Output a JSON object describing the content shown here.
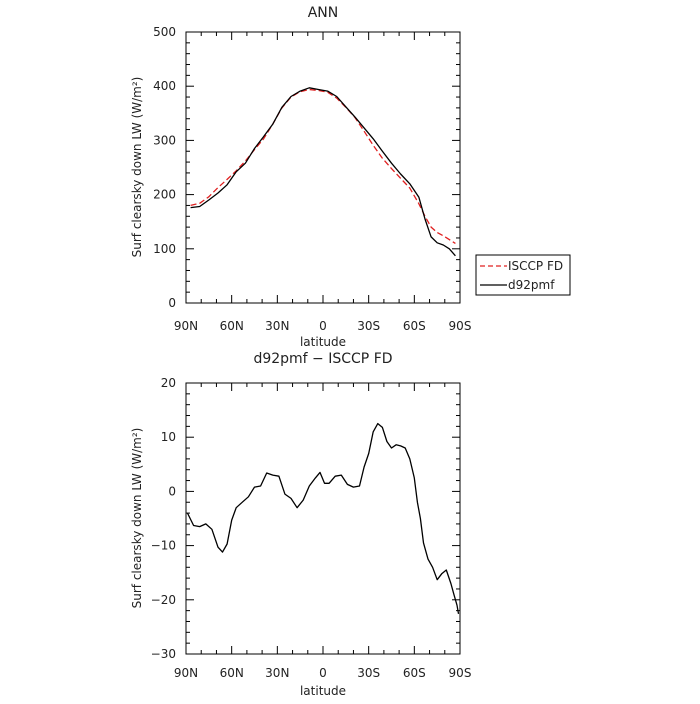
{
  "chart_data": [
    {
      "type": "line",
      "title": "ANN",
      "xlabel": "latitude",
      "ylabel": "Surf clearsky down LW (W/m²)",
      "xticks": [
        "90N",
        "60N",
        "30N",
        "0",
        "30S",
        "60S",
        "90S"
      ],
      "ylim": [
        0,
        500
      ],
      "yticks": [
        "0",
        "100",
        "200",
        "300",
        "400",
        "500"
      ],
      "legend": "right",
      "series": [
        {
          "name": "ISCCP FD",
          "color": "#e02020",
          "dash": "dashed",
          "x": [
            -87,
            -81,
            -75,
            -69,
            -63,
            -57,
            -51,
            -45,
            -39,
            -33,
            -27,
            -21,
            -15,
            -9,
            -3,
            3,
            9,
            15,
            21,
            27,
            33,
            39,
            45,
            51,
            57,
            63,
            67,
            71,
            75,
            79,
            83,
            87
          ],
          "values": [
            180,
            184,
            196,
            213,
            228,
            244,
            262,
            283,
            303,
            330,
            360,
            380,
            390,
            394,
            392,
            389,
            378,
            361,
            342,
            317,
            291,
            267,
            248,
            230,
            212,
            183,
            160,
            140,
            130,
            124,
            117,
            110
          ]
        },
        {
          "name": "d92pmf",
          "color": "#000000",
          "dash": "solid",
          "x": [
            -87,
            -81,
            -75,
            -69,
            -63,
            -57,
            -51,
            -45,
            -39,
            -33,
            -27,
            -21,
            -15,
            -9,
            -3,
            3,
            9,
            15,
            21,
            27,
            33,
            39,
            45,
            51,
            57,
            63,
            67,
            71,
            75,
            79,
            83,
            87
          ],
          "values": [
            176,
            178,
            190,
            203,
            218,
            242,
            258,
            285,
            307,
            330,
            361,
            381,
            391,
            397,
            394,
            391,
            381,
            362,
            343,
            323,
            303,
            280,
            258,
            238,
            220,
            195,
            155,
            122,
            111,
            107,
            100,
            87
          ]
        }
      ]
    },
    {
      "type": "line",
      "title": "d92pmf − ISCCP FD",
      "xlabel": "latitude",
      "ylabel": "Surf clearsky down LW (W/m²)",
      "xticks": [
        "90N",
        "60N",
        "30N",
        "0",
        "30S",
        "60S",
        "90S"
      ],
      "ylim": [
        -30,
        20
      ],
      "yticks": [
        "−30",
        "−20",
        "−10",
        "0",
        "10",
        "20"
      ],
      "series": [
        {
          "color": "#000000",
          "x": [
            -89,
            -85,
            -81,
            -77,
            -73,
            -69,
            -66,
            -63,
            -60,
            -57,
            -53,
            -49,
            -45,
            -41,
            -37,
            -33,
            -29,
            -25,
            -21,
            -17,
            -13,
            -9,
            -5,
            -2,
            1,
            4,
            8,
            12,
            16,
            20,
            24,
            27,
            30,
            33,
            36,
            39,
            42,
            45,
            48,
            51,
            54,
            57,
            60,
            62,
            64,
            66,
            69,
            72,
            75,
            78,
            81,
            84,
            86,
            88,
            89
          ],
          "values": [
            -4,
            -6.3,
            -6.5,
            -6,
            -7,
            -10.3,
            -11.2,
            -9.7,
            -5.3,
            -3,
            -2,
            -1,
            0.8,
            1,
            3.4,
            3,
            2.8,
            -0.5,
            -1.3,
            -3,
            -1.6,
            1,
            2.5,
            3.5,
            1.5,
            1.5,
            2.8,
            3,
            1.3,
            0.8,
            1,
            4.5,
            7,
            11,
            12.5,
            11.8,
            9.2,
            8,
            8.6,
            8.4,
            8,
            6,
            2.5,
            -2,
            -5,
            -9.5,
            -12.5,
            -14,
            -16.3,
            -15.2,
            -14.5,
            -17,
            -19,
            -21,
            -22.6
          ]
        }
      ]
    }
  ]
}
